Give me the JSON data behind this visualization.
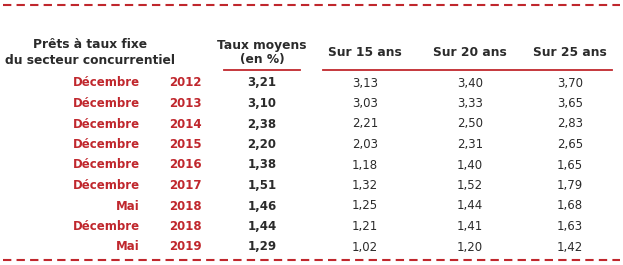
{
  "header_col1a": "Prêts à taux fixe",
  "header_col1b": "du secteur concurrentiel",
  "header_col2a": "Taux moyens",
  "header_col2b": "(en %)",
  "header_col3": "Sur 15 ans",
  "header_col4": "Sur 20 ans",
  "header_col5": "Sur 25 ans",
  "rows": [
    {
      "month": "Décembre",
      "year": "2012",
      "taux": "3,21",
      "s15": "3,13",
      "s20": "3,40",
      "s25": "3,70"
    },
    {
      "month": "Décembre",
      "year": "2013",
      "taux": "3,10",
      "s15": "3,03",
      "s20": "3,33",
      "s25": "3,65"
    },
    {
      "month": "Décembre",
      "year": "2014",
      "taux": "2,38",
      "s15": "2,21",
      "s20": "2,50",
      "s25": "2,83"
    },
    {
      "month": "Décembre",
      "year": "2015",
      "taux": "2,20",
      "s15": "2,03",
      "s20": "2,31",
      "s25": "2,65"
    },
    {
      "month": "Décembre",
      "year": "2016",
      "taux": "1,38",
      "s15": "1,18",
      "s20": "1,40",
      "s25": "1,65"
    },
    {
      "month": "Décembre",
      "year": "2017",
      "taux": "1,51",
      "s15": "1,32",
      "s20": "1,52",
      "s25": "1,79"
    },
    {
      "month": "Mai",
      "year": "2018",
      "taux": "1,46",
      "s15": "1,25",
      "s20": "1,44",
      "s25": "1,68"
    },
    {
      "month": "Décembre",
      "year": "2018",
      "taux": "1,44",
      "s15": "1,21",
      "s20": "1,41",
      "s25": "1,63"
    },
    {
      "month": "Mai",
      "year": "2019",
      "taux": "1,29",
      "s15": "1,02",
      "s20": "1,20",
      "s25": "1,42"
    }
  ],
  "red_color": "#C0272D",
  "black_color": "#2b2b2b",
  "bg_color": "#FFFFFF",
  "font_size_data": 8.5,
  "font_size_header": 8.8
}
